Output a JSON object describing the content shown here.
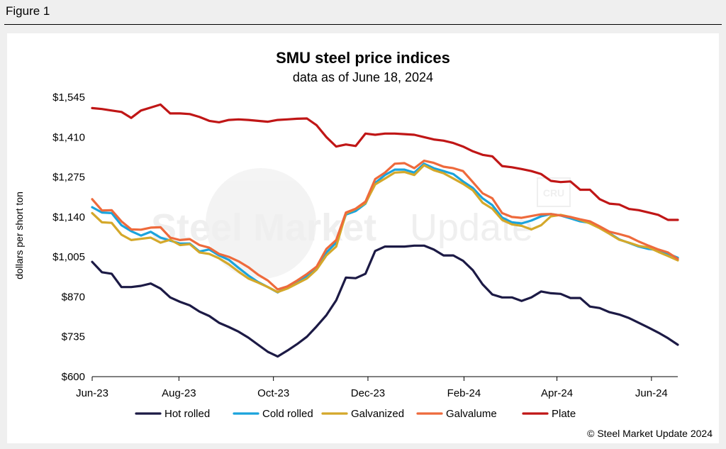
{
  "figure_label": "Figure 1",
  "watermark": {
    "text_bold": "Steel Market",
    "text_light": "Update",
    "badge": "CRU"
  },
  "copyright": "© Steel Market Update 2024",
  "colors": {
    "Hot rolled": "#1c1a45",
    "Cold rolled": "#1aa3dc",
    "Galvanized": "#d4a82a",
    "Galvalume": "#ee6a3c",
    "Plate": "#c01616"
  },
  "chart_data": {
    "type": "line",
    "title": "SMU steel price indices",
    "subtitle": "data as of June 18, 2024",
    "xlabel": "",
    "ylabel": "dollars per short ton",
    "ylim": [
      600,
      1545
    ],
    "yticks": [
      600,
      735,
      870,
      1005,
      1140,
      1275,
      1410,
      1545
    ],
    "ytick_labels": [
      "$600",
      "$735",
      "$870",
      "$1,005",
      "$1,140",
      "$1,275",
      "$1,410",
      "$1,545"
    ],
    "x_start": "2023-06-06",
    "x_end": "2024-06-18",
    "xtick_dates": [
      "2023-06-01",
      "2023-08-01",
      "2023-10-01",
      "2023-12-01",
      "2024-02-01",
      "2024-04-01",
      "2024-06-01"
    ],
    "xtick_labels": [
      "Jun-23",
      "Aug-23",
      "Oct-23",
      "Dec-23",
      "Feb-24",
      "Apr-24",
      "Jun-24"
    ],
    "legend_position": "bottom",
    "grid": false,
    "series": [
      {
        "name": "Hot rolled",
        "values": [
          988,
          953,
          948,
          903,
          903,
          907,
          915,
          898,
          868,
          853,
          841,
          820,
          805,
          782,
          768,
          752,
          732,
          708,
          684,
          668,
          688,
          710,
          735,
          770,
          808,
          858,
          935,
          933,
          948,
          1025,
          1040,
          1040,
          1040,
          1043,
          1043,
          1030,
          1010,
          1010,
          992,
          960,
          912,
          878,
          868,
          868,
          856,
          868,
          888,
          882,
          880,
          866,
          866,
          837,
          832,
          818,
          810,
          798,
          782,
          766,
          749,
          730,
          708
        ]
      },
      {
        "name": "Cold rolled",
        "values": [
          1173,
          1155,
          1153,
          1112,
          1092,
          1077,
          1090,
          1070,
          1060,
          1050,
          1050,
          1023,
          1030,
          1010,
          995,
          968,
          942,
          920,
          903,
          885,
          905,
          922,
          940,
          966,
          1020,
          1053,
          1148,
          1160,
          1185,
          1255,
          1282,
          1300,
          1300,
          1290,
          1320,
          1305,
          1295,
          1285,
          1260,
          1238,
          1203,
          1180,
          1138,
          1122,
          1118,
          1128,
          1142,
          1150,
          1145,
          1135,
          1125,
          1120,
          1105,
          1085,
          1064,
          1052,
          1040,
          1032,
          1028,
          1016,
          1002
        ]
      },
      {
        "name": "Galvanized",
        "values": [
          1153,
          1122,
          1120,
          1080,
          1062,
          1066,
          1070,
          1053,
          1063,
          1045,
          1048,
          1020,
          1015,
          1000,
          980,
          955,
          932,
          918,
          903,
          886,
          898,
          915,
          932,
          962,
          1010,
          1040,
          1152,
          1167,
          1187,
          1250,
          1270,
          1290,
          1292,
          1282,
          1315,
          1298,
          1288,
          1270,
          1252,
          1230,
          1188,
          1168,
          1130,
          1115,
          1110,
          1098,
          1112,
          1142,
          1147,
          1140,
          1130,
          1118,
          1102,
          1083,
          1063,
          1053,
          1042,
          1037,
          1022,
          1008,
          993
        ]
      },
      {
        "name": "Galvalume",
        "values": [
          1200,
          1162,
          1163,
          1125,
          1098,
          1097,
          1104,
          1105,
          1070,
          1062,
          1065,
          1045,
          1036,
          1015,
          1005,
          990,
          970,
          945,
          925,
          895,
          905,
          925,
          947,
          972,
          1032,
          1062,
          1155,
          1168,
          1192,
          1268,
          1290,
          1320,
          1322,
          1305,
          1330,
          1323,
          1310,
          1305,
          1295,
          1258,
          1220,
          1203,
          1153,
          1140,
          1137,
          1143,
          1149,
          1150,
          1145,
          1140,
          1132,
          1125,
          1108,
          1090,
          1082,
          1073,
          1057,
          1043,
          1030,
          1020,
          998
        ]
      },
      {
        "name": "Plate",
        "values": [
          1508,
          1505,
          1500,
          1495,
          1475,
          1500,
          1510,
          1520,
          1490,
          1490,
          1488,
          1478,
          1465,
          1460,
          1468,
          1470,
          1468,
          1465,
          1462,
          1468,
          1470,
          1472,
          1473,
          1450,
          1410,
          1378,
          1385,
          1380,
          1422,
          1418,
          1422,
          1422,
          1420,
          1418,
          1410,
          1402,
          1398,
          1390,
          1378,
          1362,
          1350,
          1345,
          1312,
          1308,
          1302,
          1295,
          1285,
          1262,
          1258,
          1260,
          1232,
          1232,
          1200,
          1185,
          1182,
          1167,
          1163,
          1155,
          1147,
          1130,
          1130
        ]
      }
    ]
  }
}
